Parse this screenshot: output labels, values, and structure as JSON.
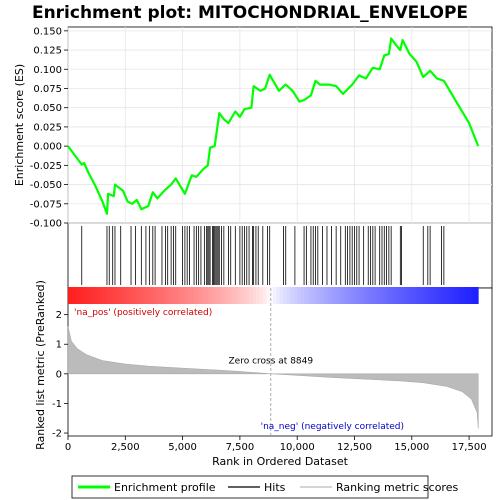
{
  "chart_data": {
    "type": "line",
    "title": "Enrichment plot: MITOCHONDRIAL_ENVELOPE",
    "xlabel": "Rank in Ordered Dataset",
    "ylabel_top": "Enrichment score (ES)",
    "ylabel_bottom": "Ranked list metric (PreRanked)",
    "xlim": [
      0,
      18500
    ],
    "x_ticks": [
      0,
      2500,
      5000,
      7500,
      10000,
      12500,
      15000,
      17500
    ],
    "x_tick_labels": [
      "0",
      "2,500",
      "5,000",
      "7,500",
      "10,000",
      "12,500",
      "15,000",
      "17,500"
    ],
    "es_ylim": [
      -0.1,
      0.155
    ],
    "es_ticks": [
      -0.1,
      -0.075,
      -0.05,
      -0.025,
      0.0,
      0.025,
      0.05,
      0.075,
      0.1,
      0.125,
      0.15
    ],
    "es_tick_labels": [
      "-0.100",
      "-0.075",
      "-0.050",
      "-0.025",
      "0.000",
      "0.025",
      "0.050",
      "0.075",
      "0.100",
      "0.125",
      "0.150"
    ],
    "metric_ylim": [
      -2.1,
      2.9
    ],
    "metric_ticks": [
      -2,
      -1,
      0,
      1,
      2
    ],
    "metric_tick_labels": [
      "-2",
      "-1",
      "0",
      "1",
      "2"
    ],
    "n_genes": 17900,
    "zero_cross_rank": 8849,
    "zero_cross_label": "Zero cross at 8849",
    "pos_label": "'na_pos' (positively correlated)",
    "neg_label": "'na_neg' (negatively correlated)",
    "enrichment_profile": [
      [
        0,
        0.0
      ],
      [
        300,
        -0.012
      ],
      [
        600,
        -0.024
      ],
      [
        700,
        -0.022
      ],
      [
        900,
        -0.035
      ],
      [
        1200,
        -0.052
      ],
      [
        1500,
        -0.072
      ],
      [
        1700,
        -0.088
      ],
      [
        1750,
        -0.062
      ],
      [
        2000,
        -0.065
      ],
      [
        2050,
        -0.05
      ],
      [
        2400,
        -0.058
      ],
      [
        2600,
        -0.072
      ],
      [
        2800,
        -0.075
      ],
      [
        3000,
        -0.07
      ],
      [
        3200,
        -0.082
      ],
      [
        3500,
        -0.078
      ],
      [
        3700,
        -0.06
      ],
      [
        3900,
        -0.068
      ],
      [
        4200,
        -0.058
      ],
      [
        4500,
        -0.05
      ],
      [
        4700,
        -0.042
      ],
      [
        5100,
        -0.062
      ],
      [
        5400,
        -0.038
      ],
      [
        5600,
        -0.04
      ],
      [
        5900,
        -0.03
      ],
      [
        6100,
        -0.025
      ],
      [
        6200,
        -0.002
      ],
      [
        6400,
        0.0
      ],
      [
        6600,
        0.043
      ],
      [
        6800,
        0.035
      ],
      [
        7000,
        0.03
      ],
      [
        7300,
        0.045
      ],
      [
        7500,
        0.038
      ],
      [
        7700,
        0.048
      ],
      [
        8000,
        0.05
      ],
      [
        8100,
        0.078
      ],
      [
        8400,
        0.072
      ],
      [
        8600,
        0.075
      ],
      [
        8800,
        0.093
      ],
      [
        9200,
        0.072
      ],
      [
        9500,
        0.08
      ],
      [
        9800,
        0.072
      ],
      [
        10100,
        0.058
      ],
      [
        10300,
        0.06
      ],
      [
        10600,
        0.066
      ],
      [
        10800,
        0.085
      ],
      [
        11000,
        0.08
      ],
      [
        11400,
        0.08
      ],
      [
        11700,
        0.078
      ],
      [
        12000,
        0.068
      ],
      [
        12400,
        0.08
      ],
      [
        12700,
        0.092
      ],
      [
        13000,
        0.088
      ],
      [
        13300,
        0.102
      ],
      [
        13600,
        0.1
      ],
      [
        13800,
        0.118
      ],
      [
        14000,
        0.12
      ],
      [
        14100,
        0.14
      ],
      [
        14300,
        0.132
      ],
      [
        14500,
        0.125
      ],
      [
        14600,
        0.138
      ],
      [
        14900,
        0.12
      ],
      [
        15200,
        0.11
      ],
      [
        15500,
        0.09
      ],
      [
        15800,
        0.098
      ],
      [
        16100,
        0.088
      ],
      [
        16400,
        0.085
      ],
      [
        17000,
        0.055
      ],
      [
        17500,
        0.03
      ],
      [
        17900,
        0.0
      ]
    ],
    "hits": [
      600,
      1700,
      1800,
      1950,
      2050,
      2300,
      2750,
      2950,
      3200,
      3400,
      3550,
      3700,
      3800,
      4100,
      4250,
      4350,
      4500,
      4600,
      4700,
      5000,
      5100,
      5200,
      5300,
      5500,
      5600,
      5700,
      5800,
      5950,
      6050,
      6100,
      6150,
      6200,
      6300,
      6350,
      6400,
      6450,
      6500,
      6550,
      6600,
      6700,
      6800,
      7000,
      7100,
      7300,
      7500,
      7600,
      7700,
      7800,
      7900,
      8050,
      8100,
      8200,
      8300,
      8500,
      8700,
      8800,
      9400,
      9500,
      9900,
      10300,
      10400,
      10600,
      10700,
      10800,
      10900,
      11100,
      11300,
      11500,
      11700,
      11900,
      12100,
      12200,
      12300,
      12400,
      12500,
      12600,
      12700,
      12900,
      13100,
      13200,
      13300,
      13400,
      13600,
      13700,
      13800,
      13900,
      14000,
      14100,
      14500,
      14550,
      15500,
      15700,
      15800,
      16300,
      16400
    ],
    "metric_curve": [
      [
        0,
        1.6
      ],
      [
        150,
        1.1
      ],
      [
        400,
        0.85
      ],
      [
        800,
        0.65
      ],
      [
        1500,
        0.45
      ],
      [
        2500,
        0.33
      ],
      [
        3500,
        0.26
      ],
      [
        5000,
        0.19
      ],
      [
        6500,
        0.13
      ],
      [
        7500,
        0.08
      ],
      [
        8849,
        0.0
      ],
      [
        10000,
        -0.05
      ],
      [
        11500,
        -0.12
      ],
      [
        13000,
        -0.18
      ],
      [
        14500,
        -0.24
      ],
      [
        15500,
        -0.3
      ],
      [
        16500,
        -0.42
      ],
      [
        17200,
        -0.6
      ],
      [
        17600,
        -0.85
      ],
      [
        17850,
        -1.3
      ],
      [
        17900,
        -1.85
      ]
    ],
    "legend": [
      {
        "label": "Enrichment profile",
        "color": "#00ff00"
      },
      {
        "label": "Hits",
        "color": "#000000"
      },
      {
        "label": "Ranking metric scores",
        "color": "#bbbbbb"
      }
    ]
  }
}
